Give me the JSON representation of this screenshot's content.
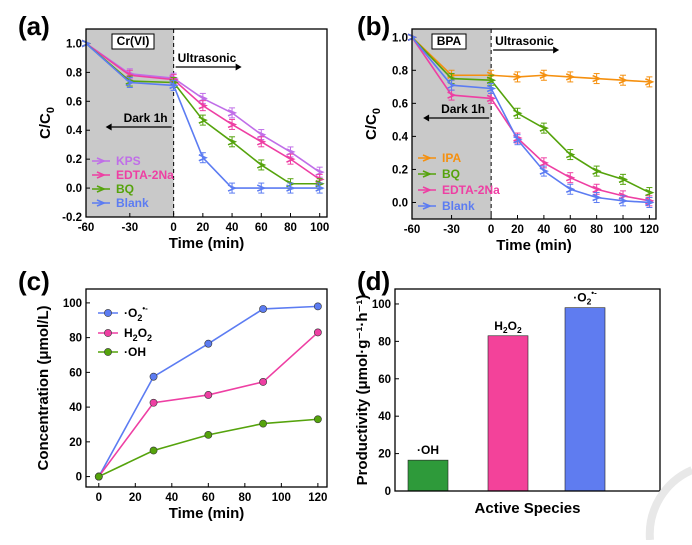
{
  "colors": {
    "purple": "#c06ee8",
    "pink": "#ee3fa3",
    "green": "#55a30c",
    "blue": "#5c7cf2",
    "orange": "#f5900f",
    "bar_oh": "#2e9a3a",
    "bar_h2o2": "#f3429a",
    "bar_o2": "#5f7cf0",
    "shade": "#c9c9c9"
  },
  "chart_data": [
    {
      "panel": "(a)",
      "type": "line",
      "badge": "Cr(VI)",
      "annotation_dark": "Dark 1h",
      "annotation_light": "Ultrasonic",
      "xlabel": "Time (min)",
      "ylabel_main": "C/C",
      "ylabel_sub": "0",
      "xlim": [
        -60,
        105
      ],
      "ylim": [
        -0.2,
        1.1
      ],
      "xticks": [
        -60,
        -30,
        0,
        20,
        40,
        60,
        80,
        100
      ],
      "yticks": [
        -0.2,
        0.0,
        0.2,
        0.4,
        0.6,
        0.8,
        1.0
      ],
      "ytick_labels": [
        "-0.2",
        "0.0",
        "0.2",
        "0.4",
        "0.6",
        "0.8",
        "1.0"
      ],
      "x": [
        -60,
        -30,
        0,
        20,
        40,
        60,
        80,
        100
      ],
      "series": [
        {
          "name": "KPS",
          "color": "purple",
          "values": [
            1.0,
            0.79,
            0.76,
            0.62,
            0.52,
            0.37,
            0.25,
            0.11
          ]
        },
        {
          "name": "EDTA-2Na",
          "color": "pink",
          "values": [
            1.0,
            0.78,
            0.75,
            0.57,
            0.44,
            0.32,
            0.2,
            0.06
          ]
        },
        {
          "name": "BQ",
          "color": "green",
          "values": [
            1.0,
            0.74,
            0.73,
            0.47,
            0.32,
            0.16,
            0.03,
            0.03
          ]
        },
        {
          "name": "Blank",
          "color": "blue",
          "values": [
            1.0,
            0.73,
            0.71,
            0.21,
            0.0,
            0.0,
            0.0,
            0.0
          ]
        }
      ]
    },
    {
      "panel": "(b)",
      "type": "line",
      "badge": "BPA",
      "annotation_dark": "Dark 1h",
      "annotation_light": "Ultrasonic",
      "xlabel": "Time (min)",
      "ylabel_main": "C/C",
      "ylabel_sub": "0",
      "xlim": [
        -60,
        125
      ],
      "ylim": [
        -0.1,
        1.05
      ],
      "xticks": [
        -60,
        -30,
        0,
        20,
        40,
        60,
        80,
        100,
        120
      ],
      "yticks": [
        0.0,
        0.2,
        0.4,
        0.6,
        0.8,
        1.0
      ],
      "ytick_labels": [
        "0.0",
        "0.2",
        "0.4",
        "0.6",
        "0.8",
        "1.0"
      ],
      "x": [
        -60,
        -30,
        0,
        20,
        40,
        60,
        80,
        100,
        120
      ],
      "series": [
        {
          "name": "IPA",
          "color": "orange",
          "values": [
            1.0,
            0.77,
            0.77,
            0.76,
            0.77,
            0.76,
            0.75,
            0.74,
            0.73
          ]
        },
        {
          "name": "BQ",
          "color": "green",
          "values": [
            1.0,
            0.75,
            0.74,
            0.54,
            0.45,
            0.29,
            0.19,
            0.14,
            0.06
          ]
        },
        {
          "name": "EDTA-2Na",
          "color": "pink",
          "values": [
            1.0,
            0.65,
            0.63,
            0.39,
            0.24,
            0.15,
            0.08,
            0.04,
            0.01
          ]
        },
        {
          "name": "Blank",
          "color": "blue",
          "values": [
            1.0,
            0.71,
            0.69,
            0.38,
            0.19,
            0.08,
            0.03,
            0.01,
            0.0
          ]
        }
      ]
    },
    {
      "panel": "(c)",
      "type": "line",
      "xlabel": "Time (min)",
      "ylabel": "Concentration (μmol/L)",
      "xlim": [
        -7,
        125
      ],
      "ylim": [
        -6,
        108
      ],
      "xticks": [
        0,
        20,
        40,
        60,
        80,
        100,
        120
      ],
      "yticks": [
        0,
        20,
        40,
        60,
        80,
        100
      ],
      "ytick_labels": [
        "0",
        "20",
        "40",
        "60",
        "80",
        "100"
      ],
      "x": [
        0,
        30,
        60,
        90,
        120
      ],
      "series": [
        {
          "name": "·O₂⁻",
          "label_main": "·O",
          "label_sub": "2",
          "label_sup": "•-",
          "color": "blue",
          "values": [
            0,
            57.5,
            76.5,
            96.5,
            98.0
          ]
        },
        {
          "name": "H₂O₂",
          "label_main": "H",
          "label_sub": "2",
          "label_tail": "O",
          "label_sub2": "2",
          "color": "pink",
          "values": [
            0,
            42.5,
            47.0,
            54.5,
            83.0
          ]
        },
        {
          "name": "·OH",
          "label_main": "·OH",
          "color": "green",
          "values": [
            0,
            15.0,
            24.0,
            30.5,
            33.0
          ]
        }
      ]
    },
    {
      "panel": "(d)",
      "type": "bar",
      "xlabel": "Active Species",
      "ylabel": "Productivity (μmol·g⁻¹·h⁻¹)",
      "ylim": [
        0,
        108
      ],
      "yticks": [
        0,
        20,
        40,
        60,
        80,
        100
      ],
      "ytick_labels": [
        "0",
        "20",
        "40",
        "60",
        "80",
        "100"
      ],
      "categories": [
        "·OH",
        "H₂O₂",
        "·O₂⁻"
      ],
      "values": [
        16.5,
        83.0,
        98.0
      ],
      "bar_colors": [
        "bar_oh",
        "bar_h2o2",
        "bar_o2"
      ]
    }
  ]
}
